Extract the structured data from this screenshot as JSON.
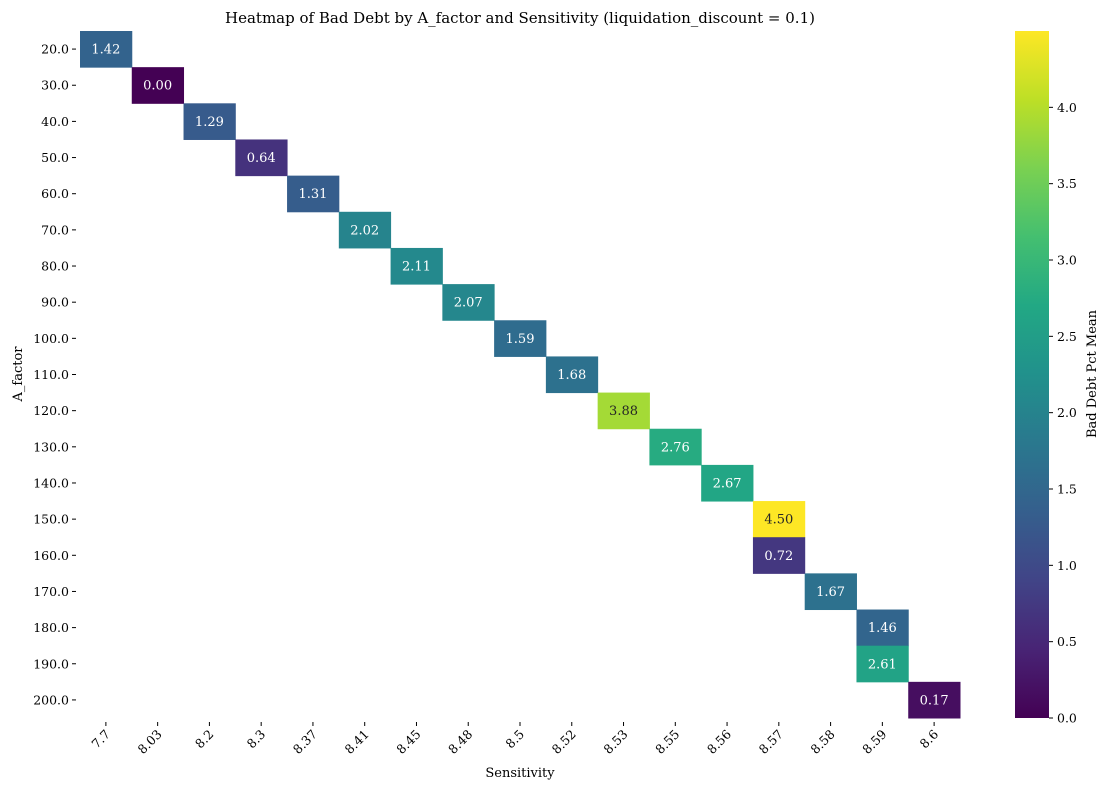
{
  "chart_data": {
    "type": "heatmap",
    "title": "Heatmap of Bad Debt by A_factor and Sensitivity (liquidation_discount = 0.1)",
    "xlabel": "Sensitivity",
    "ylabel": "A_factor",
    "x_categories": [
      "7.7",
      "8.03",
      "8.2",
      "8.3",
      "8.37",
      "8.41",
      "8.45",
      "8.48",
      "8.5",
      "8.52",
      "8.53",
      "8.55",
      "8.56",
      "8.57",
      "8.58",
      "8.59",
      "8.6"
    ],
    "y_categories": [
      "20.0",
      "30.0",
      "40.0",
      "50.0",
      "60.0",
      "70.0",
      "80.0",
      "90.0",
      "100.0",
      "110.0",
      "120.0",
      "130.0",
      "140.0",
      "150.0",
      "160.0",
      "170.0",
      "180.0",
      "190.0",
      "200.0"
    ],
    "cells": [
      {
        "x": "7.7",
        "y": "20.0",
        "value": 1.42
      },
      {
        "x": "8.03",
        "y": "30.0",
        "value": 0.0
      },
      {
        "x": "8.2",
        "y": "40.0",
        "value": 1.29
      },
      {
        "x": "8.3",
        "y": "50.0",
        "value": 0.64
      },
      {
        "x": "8.37",
        "y": "60.0",
        "value": 1.31
      },
      {
        "x": "8.41",
        "y": "70.0",
        "value": 2.02
      },
      {
        "x": "8.45",
        "y": "80.0",
        "value": 2.11
      },
      {
        "x": "8.48",
        "y": "90.0",
        "value": 2.07
      },
      {
        "x": "8.5",
        "y": "100.0",
        "value": 1.59
      },
      {
        "x": "8.52",
        "y": "110.0",
        "value": 1.68
      },
      {
        "x": "8.53",
        "y": "120.0",
        "value": 3.88
      },
      {
        "x": "8.55",
        "y": "130.0",
        "value": 2.76
      },
      {
        "x": "8.56",
        "y": "140.0",
        "value": 2.67
      },
      {
        "x": "8.57",
        "y": "150.0",
        "value": 4.5
      },
      {
        "x": "8.57",
        "y": "160.0",
        "value": 0.72
      },
      {
        "x": "8.58",
        "y": "170.0",
        "value": 1.67
      },
      {
        "x": "8.59",
        "y": "180.0",
        "value": 1.46
      },
      {
        "x": "8.59",
        "y": "190.0",
        "value": 2.61
      },
      {
        "x": "8.6",
        "y": "200.0",
        "value": 0.17
      }
    ],
    "colormap": "viridis",
    "colorbar": {
      "label": "Bad Debt Pct Mean",
      "range": [
        0.0,
        4.5
      ],
      "ticks": [
        "0.0",
        "0.5",
        "1.0",
        "1.5",
        "2.0",
        "2.5",
        "3.0",
        "3.5",
        "4.0"
      ]
    },
    "annotation_format": "2 decimals",
    "grid": false
  }
}
